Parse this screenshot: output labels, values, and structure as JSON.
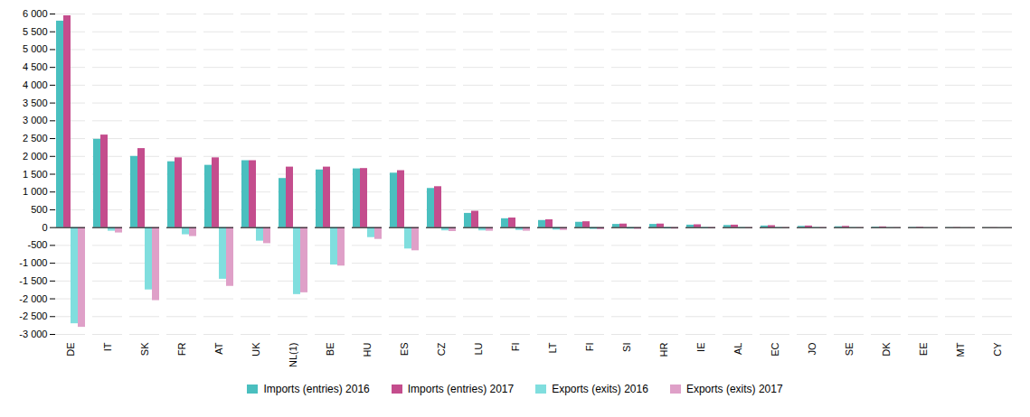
{
  "chart_data": {
    "type": "bar",
    "categories": [
      "DE",
      "IT",
      "SK",
      "FR",
      "AT",
      "UK",
      "NL(1)",
      "BE",
      "HU",
      "ES",
      "CZ",
      "LU",
      "FI",
      "LT",
      "FI",
      "SI",
      "HR",
      "IE",
      "AL",
      "EC",
      "JO",
      "SE",
      "DK",
      "EE",
      "MT",
      "CY"
    ],
    "series": [
      {
        "name": "Imports (entries) 2016",
        "color": "#4abfbf",
        "values": [
          5800,
          2480,
          2000,
          1850,
          1750,
          1880,
          1380,
          1620,
          1650,
          1530,
          1100,
          400,
          250,
          200,
          150,
          90,
          90,
          70,
          60,
          45,
          35,
          25,
          15,
          8,
          4,
          2
        ]
      },
      {
        "name": "Imports (entries) 2017",
        "color": "#c44d8d",
        "values": [
          5950,
          2600,
          2220,
          1960,
          1960,
          1880,
          1700,
          1700,
          1660,
          1600,
          1150,
          460,
          270,
          220,
          165,
          100,
          100,
          80,
          70,
          55,
          45,
          35,
          22,
          12,
          6,
          3
        ]
      },
      {
        "name": "Exports (exits) 2016",
        "color": "#80dede",
        "values": [
          -2700,
          -100,
          -1750,
          -200,
          -1450,
          -380,
          -1880,
          -1050,
          -280,
          -600,
          -90,
          -90,
          -80,
          -70,
          -50,
          -40,
          -35,
          -25,
          -20,
          -15,
          -12,
          -8,
          -6,
          -4,
          -2,
          -1
        ]
      },
      {
        "name": "Exports (exits) 2017",
        "color": "#dfa0c8",
        "values": [
          -2800,
          -150,
          -2050,
          -250,
          -1650,
          -450,
          -1830,
          -1080,
          -330,
          -650,
          -110,
          -100,
          -100,
          -80,
          -60,
          -50,
          -42,
          -30,
          -24,
          -18,
          -15,
          -10,
          -8,
          -5,
          -3,
          -2
        ]
      }
    ],
    "ylim": [
      -3000,
      6000
    ],
    "yticks": [
      {
        "value": -3000,
        "label": "-3 000"
      },
      {
        "value": -2500,
        "label": "-2 500"
      },
      {
        "value": -2000,
        "label": "-2 000"
      },
      {
        "value": -1500,
        "label": "-1 500"
      },
      {
        "value": -1000,
        "label": "-1 000"
      },
      -500,
      0,
      500,
      {
        "value": 1000,
        "label": "1 000"
      },
      {
        "value": 1500,
        "label": "1 500"
      },
      {
        "value": 2000,
        "label": "2 000"
      },
      {
        "value": 2500,
        "label": "2 500"
      },
      {
        "value": 3000,
        "label": "3 000"
      },
      {
        "value": 3500,
        "label": "3 500"
      },
      {
        "value": 4000,
        "label": "4 000"
      },
      {
        "value": 4500,
        "label": "4 500"
      },
      {
        "value": 5000,
        "label": "5 000"
      },
      {
        "value": 5500,
        "label": "5 500"
      },
      {
        "value": 6000,
        "label": "6 000"
      }
    ],
    "grid": true,
    "legend": "bottom"
  }
}
